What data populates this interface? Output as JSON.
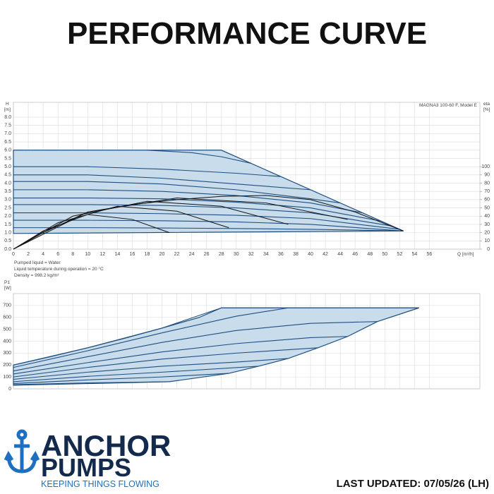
{
  "header": {
    "title": "PERFORMANCE CURVE"
  },
  "chart_data": [
    {
      "type": "line",
      "annotation": "MAGNA3 100-60 F, Model E",
      "y_label": [
        "H",
        "[m]"
      ],
      "y2_label": [
        "eta",
        "[%]"
      ],
      "x_label": "Q [m³/h]",
      "xlim": [
        0,
        62.8
      ],
      "ylim": [
        0,
        8.9
      ],
      "y2lim": [
        0,
        178
      ],
      "grid": true,
      "xticks": [
        0,
        2,
        4,
        6,
        8,
        10,
        12,
        14,
        16,
        18,
        20,
        22,
        24,
        26,
        28,
        30,
        32,
        34,
        36,
        38,
        40,
        42,
        44,
        46,
        48,
        50,
        52,
        54,
        56
      ],
      "yticks": [
        {
          "value": 0,
          "label": "0.0"
        },
        0.5,
        {
          "value": 1,
          "label": "1.0"
        },
        1.5,
        {
          "value": 2,
          "label": "2.0"
        },
        2.5,
        {
          "value": 3,
          "label": "3.0"
        },
        3.5,
        {
          "value": 4,
          "label": "4.0"
        },
        4.5,
        {
          "value": 5,
          "label": "5.0"
        },
        5.5,
        {
          "value": 6,
          "label": "6.0"
        },
        6.5,
        {
          "value": 7,
          "label": "7.0"
        },
        7.5,
        {
          "value": 8,
          "label": "8.0"
        }
      ],
      "y2ticks": [
        0,
        10,
        20,
        30,
        40,
        50,
        60,
        70,
        80,
        90,
        100
      ],
      "series": [
        {
          "color": "#c9dcec",
          "fill": true,
          "x": [
            0,
            28,
            52.5,
            0
          ],
          "values": [
            6.0,
            6.0,
            1.1,
            0.95
          ]
        },
        {
          "color": "#1f4f7f",
          "x": [
            18,
            24,
            28,
            32
          ],
          "values": [
            6.0,
            5.85,
            5.6,
            5.2
          ]
        },
        {
          "color": "#1f4f7f",
          "x": [
            0,
            10,
            20,
            30,
            36
          ],
          "values": [
            5.0,
            5.0,
            4.85,
            4.6,
            4.4
          ]
        },
        {
          "color": "#1f4f7f",
          "x": [
            0,
            10,
            20,
            30,
            40
          ],
          "values": [
            4.5,
            4.5,
            4.3,
            3.95,
            3.6
          ]
        },
        {
          "color": "#1f4f7f",
          "x": [
            0,
            10,
            20,
            30,
            40,
            44
          ],
          "values": [
            4.1,
            4.1,
            3.95,
            3.6,
            3.05,
            2.8
          ]
        },
        {
          "color": "#1f4f7f",
          "x": [
            0,
            10,
            20,
            30,
            40,
            47
          ],
          "values": [
            3.6,
            3.6,
            3.5,
            3.25,
            2.8,
            2.2
          ]
        },
        {
          "color": "#1f4f7f",
          "x": [
            0,
            10,
            20,
            30,
            40,
            49.5
          ],
          "values": [
            3.1,
            3.1,
            3.05,
            2.85,
            2.5,
            1.7
          ]
        },
        {
          "color": "#1f4f7f",
          "x": [
            0,
            10,
            20,
            30,
            40,
            51
          ],
          "values": [
            2.7,
            2.7,
            2.65,
            2.5,
            2.2,
            1.4
          ]
        },
        {
          "color": "#1f4f7f",
          "x": [
            0,
            10,
            20,
            30,
            40,
            52
          ],
          "values": [
            2.2,
            2.2,
            2.15,
            2.05,
            1.85,
            1.2
          ]
        },
        {
          "color": "#1f4f7f",
          "x": [
            0,
            10,
            20,
            30,
            40,
            52.5
          ],
          "values": [
            1.75,
            1.75,
            1.72,
            1.65,
            1.5,
            1.1
          ]
        },
        {
          "color": "#1f4f7f",
          "x": [
            0,
            10,
            20,
            30,
            40,
            52.5
          ],
          "values": [
            1.3,
            1.3,
            1.28,
            1.25,
            1.2,
            1.1
          ]
        },
        {
          "color": "#111111",
          "axis": "y2",
          "x": [
            0,
            4,
            10,
            16,
            22,
            28,
            34,
            40,
            46,
            52.5
          ],
          "values": [
            0,
            20,
            45,
            54,
            60,
            64,
            65,
            60,
            45,
            22
          ]
        },
        {
          "color": "#111111",
          "axis": "y2",
          "x": [
            0,
            4,
            10,
            16,
            21
          ],
          "values": [
            0,
            22,
            42,
            36,
            20
          ]
        },
        {
          "color": "#111111",
          "axis": "y2",
          "x": [
            0,
            6,
            14,
            22,
            29
          ],
          "values": [
            0,
            32,
            52,
            46,
            26
          ]
        },
        {
          "color": "#111111",
          "axis": "y2",
          "x": [
            0,
            8,
            18,
            28,
            37
          ],
          "values": [
            0,
            40,
            58,
            52,
            30
          ]
        },
        {
          "color": "#111111",
          "axis": "y2",
          "x": [
            0,
            10,
            22,
            34,
            45
          ],
          "values": [
            0,
            45,
            62,
            56,
            36
          ]
        }
      ]
    },
    {
      "type": "line",
      "y_label": [
        "P1",
        "[W]"
      ],
      "xlim": [
        0,
        62.8
      ],
      "ylim": [
        0,
        800
      ],
      "grid": true,
      "yticks": [
        0,
        100,
        200,
        300,
        400,
        500,
        600,
        700
      ],
      "series": [
        {
          "color": "#c9dcec",
          "fill": true,
          "x": [
            0,
            5,
            10,
            15,
            20,
            25,
            28,
            54.6,
            49,
            45,
            41,
            37,
            33,
            29,
            21,
            0
          ],
          "values": [
            200,
            270,
            345,
            425,
            510,
            600,
            680,
            680,
            565,
            440,
            345,
            255,
            190,
            130,
            60,
            30
          ]
        },
        {
          "color": "#1f4f7f",
          "x": [
            0,
            10,
            20,
            28
          ],
          "values": [
            200,
            345,
            510,
            680
          ]
        },
        {
          "color": "#1f4f7f",
          "x": [
            28,
            54.6
          ],
          "values": [
            680,
            680
          ]
        },
        {
          "color": "#1f4f7f",
          "x": [
            0,
            10,
            20,
            30,
            37
          ],
          "values": [
            180,
            320,
            470,
            610,
            680
          ]
        },
        {
          "color": "#1f4f7f",
          "x": [
            0,
            10,
            20,
            30,
            40,
            49
          ],
          "values": [
            150,
            270,
            390,
            490,
            550,
            565
          ]
        },
        {
          "color": "#1f4f7f",
          "x": [
            0,
            10,
            20,
            30,
            40,
            45
          ],
          "values": [
            125,
            220,
            310,
            380,
            430,
            440
          ]
        },
        {
          "color": "#1f4f7f",
          "x": [
            0,
            10,
            20,
            30,
            41
          ],
          "values": [
            100,
            180,
            250,
            300,
            345
          ]
        },
        {
          "color": "#1f4f7f",
          "x": [
            0,
            10,
            20,
            30,
            37
          ],
          "values": [
            80,
            140,
            190,
            225,
            255
          ]
        },
        {
          "color": "#1f4f7f",
          "x": [
            0,
            10,
            20,
            33
          ],
          "values": [
            60,
            105,
            140,
            190
          ]
        },
        {
          "color": "#1f4f7f",
          "x": [
            0,
            10,
            20,
            29
          ],
          "values": [
            45,
            75,
            100,
            130
          ]
        },
        {
          "color": "#1f4f7f",
          "x": [
            0,
            10,
            21
          ],
          "values": [
            35,
            50,
            60
          ]
        }
      ]
    }
  ],
  "notes": [
    "Pumped liquid = Water",
    "Liquid temperature during operation = 20 °C",
    "Density = 998.2 kg/m³"
  ],
  "footer": {
    "brand_top": "ANCHOR",
    "brand_bottom": "PUMPS",
    "tagline": "KEEPING THINGS FLOWING",
    "updated": "LAST UPDATED: 07/05/26 (LH)"
  }
}
